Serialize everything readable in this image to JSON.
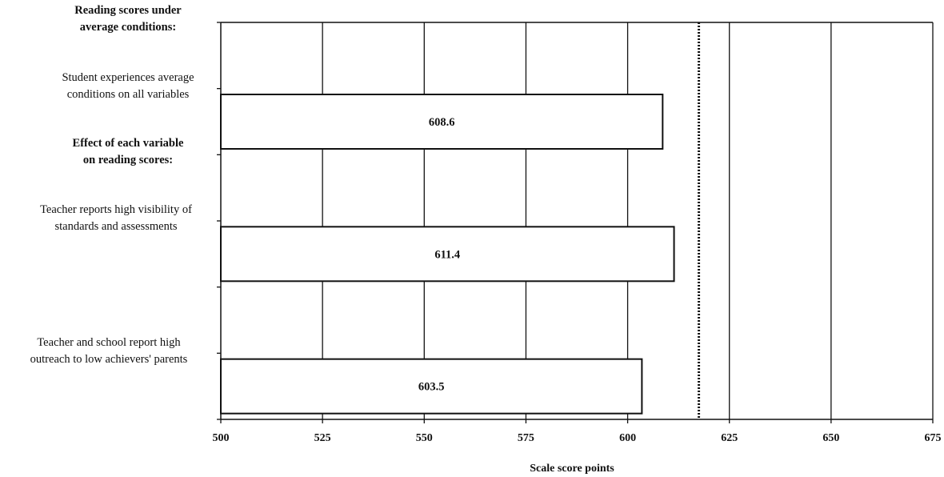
{
  "chart_data": {
    "type": "bar",
    "orientation": "horizontal",
    "categories": [
      "Reading scores under average conditions:",
      "Student experiences average conditions on all variables",
      "Effect of each variable on reading scores:",
      "Teacher reports high visibility of standards and assessments",
      "",
      "Teacher and school report high outreach to low achievers' parents"
    ],
    "values": [
      null,
      608.6,
      null,
      611.4,
      null,
      603.5
    ],
    "data_labels": [
      "",
      "608.6",
      "",
      "611.4",
      "",
      "603.5"
    ],
    "xlabel": "Scale score points",
    "xlim": [
      500,
      675
    ],
    "xticks": [
      "500",
      "525",
      "550",
      "575",
      "600",
      "625",
      "650",
      "675"
    ],
    "reference_line": {
      "value": 617.5,
      "style": "dotted"
    },
    "grid": true,
    "legend": "none"
  },
  "labels": {
    "heading1_line1": "Reading scores under",
    "heading1_line2": "average conditions:",
    "bar1_line1": "Student experiences average",
    "bar1_line2": "conditions on all variables",
    "heading2_line1": "Effect of each variable",
    "heading2_line2": "on reading scores:",
    "bar2_line1": "Teacher reports high visibility of",
    "bar2_line2": "standards and assessments",
    "bar3_line1": "Teacher and school report high",
    "bar3_line2": "outreach to low achievers' parents"
  }
}
